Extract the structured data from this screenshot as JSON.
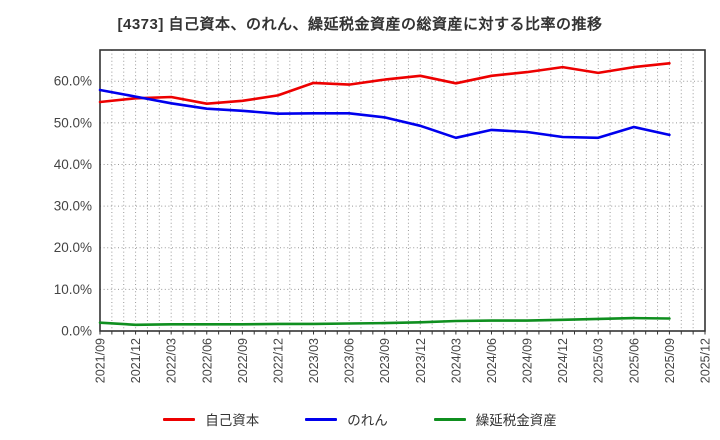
{
  "page": {
    "background": "#ffffff"
  },
  "chart_data": {
    "type": "line",
    "title": "[4373]  自己資本、のれん、繰延税金資産の総資産に対する比率の推移",
    "xlabel": "",
    "ylabel": "",
    "ylim": [
      0,
      67.5
    ],
    "y_ticks": [
      0,
      10,
      20,
      30,
      40,
      50,
      60
    ],
    "y_tick_labels": [
      "0.0%",
      "10.0%",
      "20.0%",
      "30.0%",
      "40.0%",
      "50.0%",
      "60.0%"
    ],
    "x_tick_labels": [
      "2021/09",
      "2021/12",
      "2022/03",
      "2022/06",
      "2022/09",
      "2022/12",
      "2023/03",
      "2023/06",
      "2023/09",
      "2023/12",
      "2024/03",
      "2024/06",
      "2024/09",
      "2024/12",
      "2025/03",
      "2025/06",
      "2025/09",
      "2025/12"
    ],
    "categories": [
      "2021/09",
      "2021/12",
      "2022/03",
      "2022/06",
      "2022/09",
      "2022/12",
      "2023/03",
      "2023/06",
      "2023/09",
      "2023/12",
      "2024/03",
      "2024/06",
      "2024/09",
      "2024/12",
      "2025/03",
      "2025/06",
      "2025/09"
    ],
    "grid": "dotted gray; horizontal every 10%, vertical monthly",
    "legend_position": "bottom-center",
    "axis_color": "#333333",
    "tick_label_color": "#444444",
    "grid_color": "#999999",
    "series": [
      {
        "name": "自己資本",
        "color": "#ed0000",
        "values": [
          55.0,
          55.9,
          56.2,
          54.6,
          55.3,
          56.6,
          59.6,
          59.2,
          60.4,
          61.3,
          59.5,
          61.3,
          62.2,
          63.4,
          62.0,
          63.4,
          64.3
        ]
      },
      {
        "name": "のれん",
        "color": "#0000ed",
        "values": [
          57.9,
          56.3,
          54.7,
          53.4,
          52.9,
          52.2,
          52.3,
          52.3,
          51.3,
          49.3,
          46.4,
          48.3,
          47.8,
          46.6,
          46.4,
          49.0,
          47.1
        ]
      },
      {
        "name": "繰延税金資産",
        "color": "#0f8f1f",
        "values": [
          2.0,
          1.5,
          1.6,
          1.6,
          1.6,
          1.7,
          1.7,
          1.8,
          1.9,
          2.1,
          2.4,
          2.5,
          2.5,
          2.7,
          2.9,
          3.1,
          3.0
        ]
      }
    ]
  }
}
